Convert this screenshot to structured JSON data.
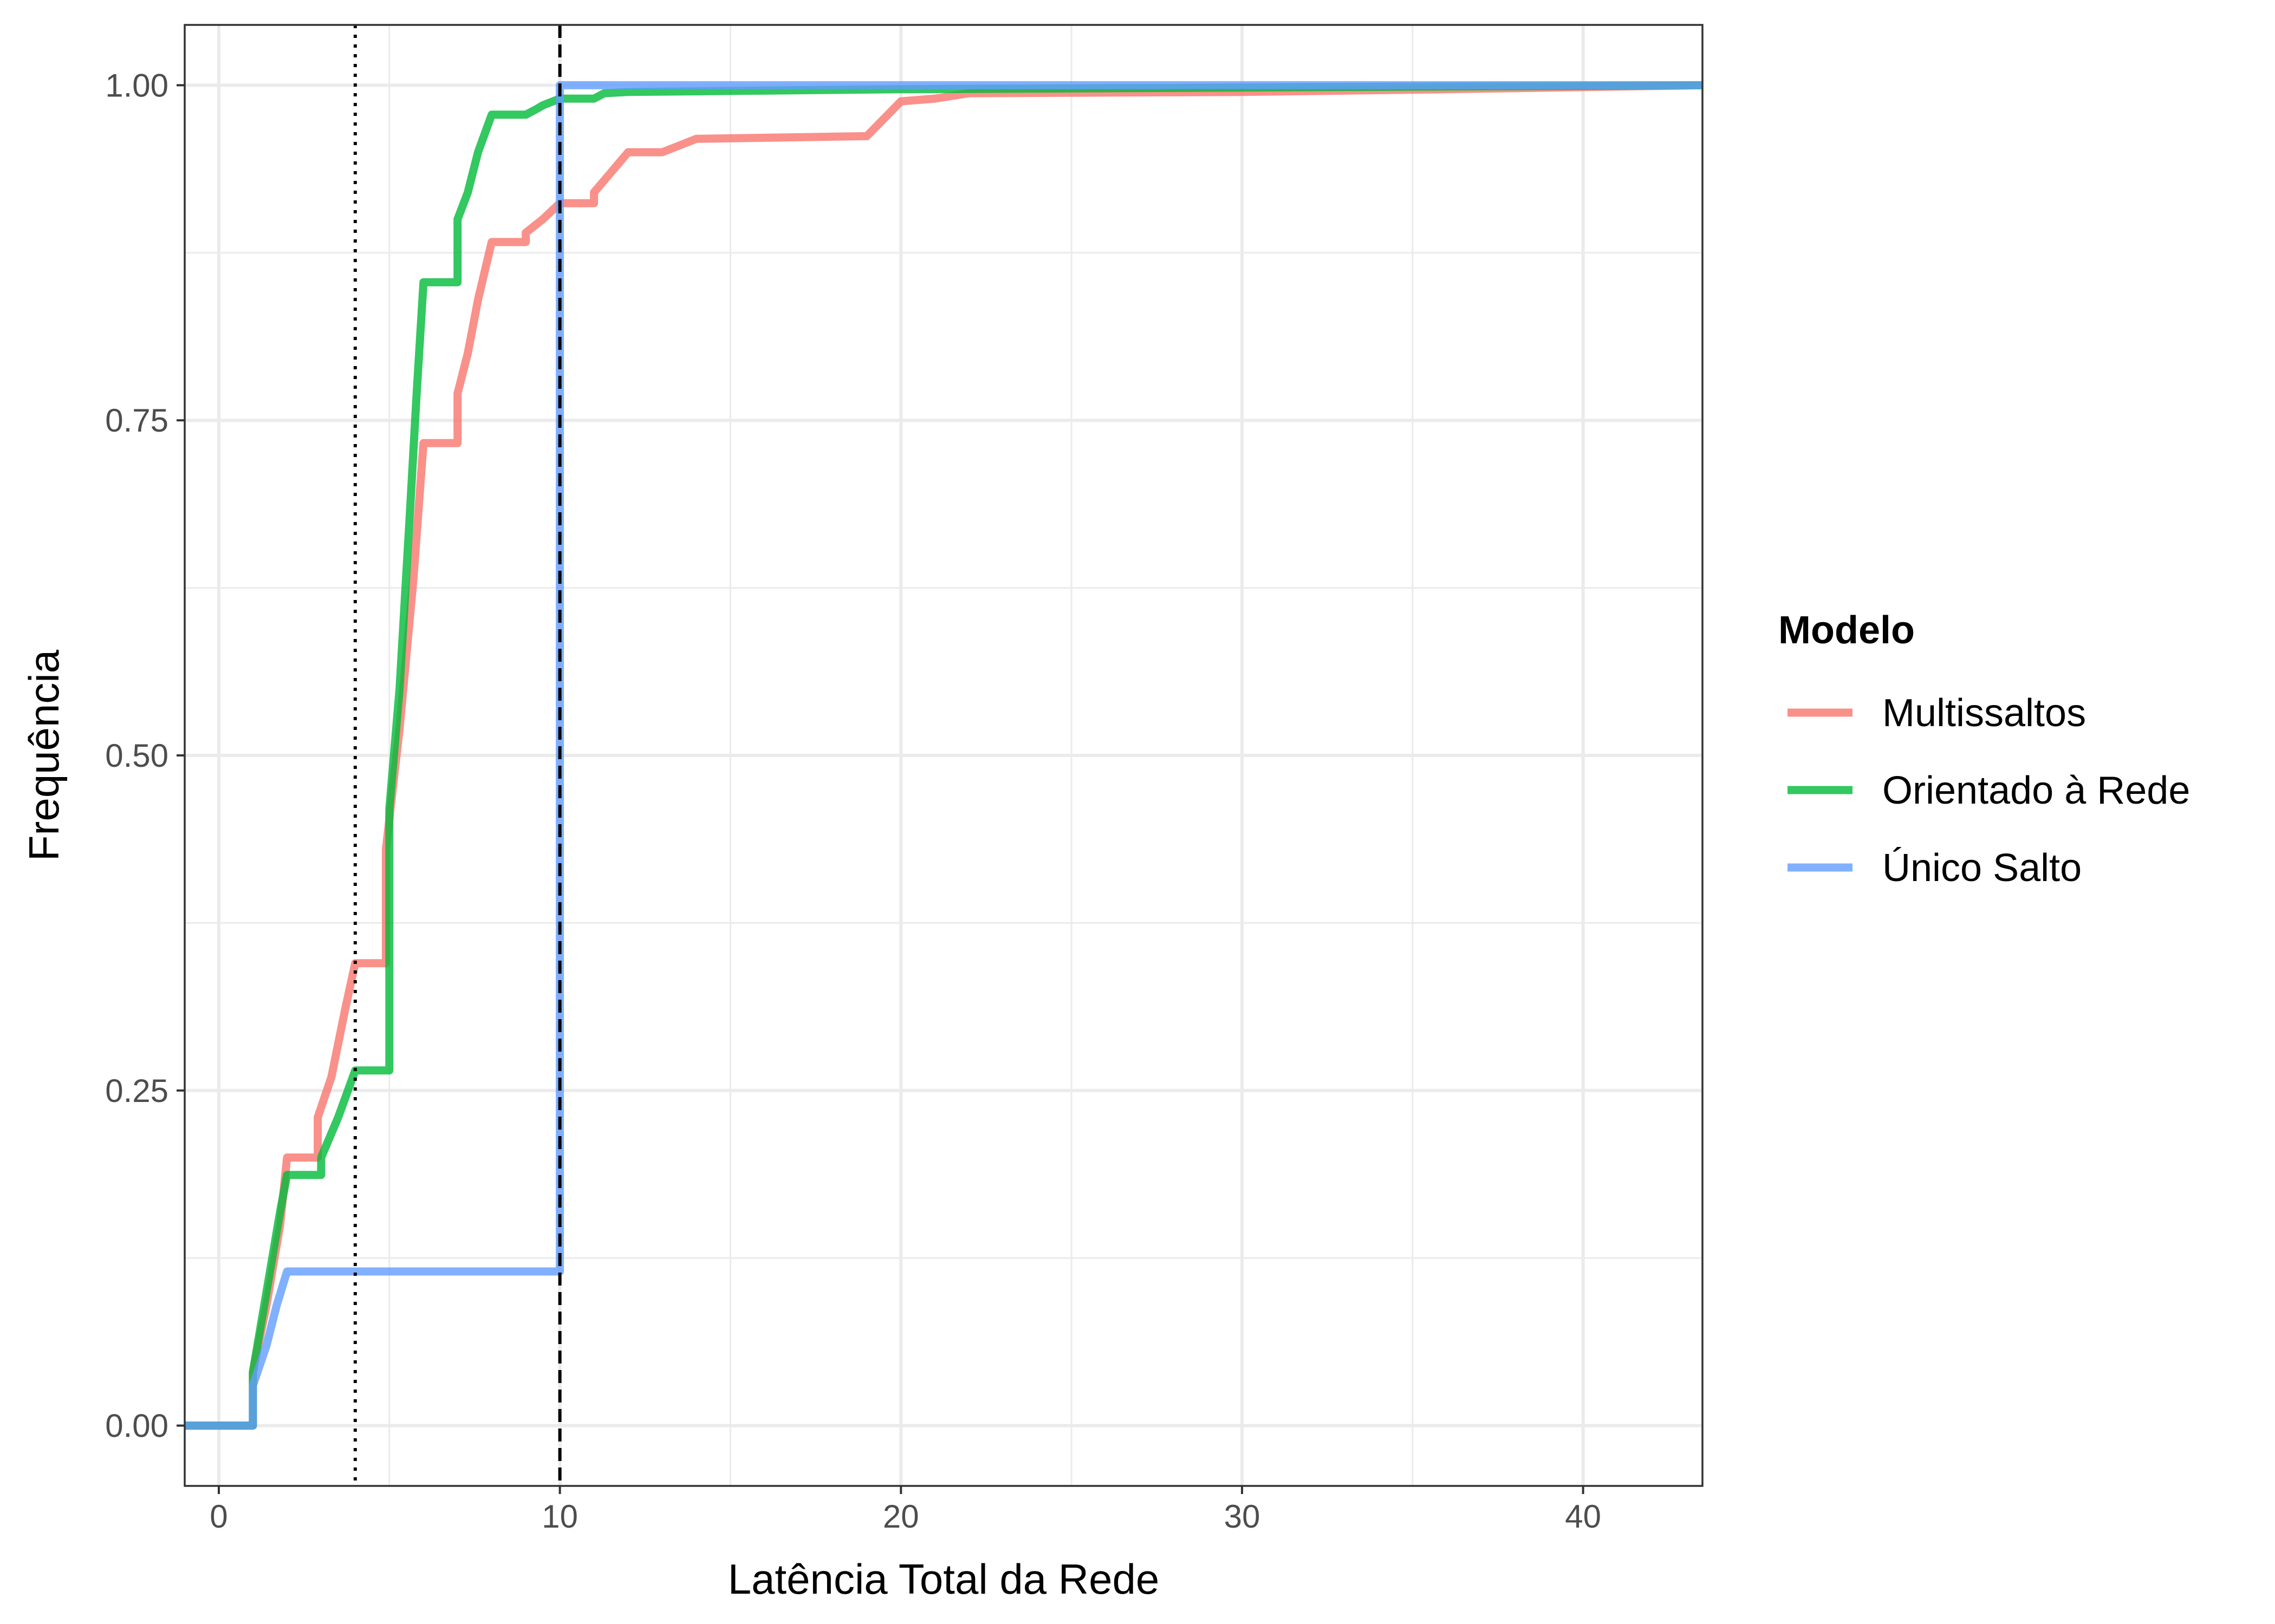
{
  "chart_data": {
    "type": "line",
    "step": true,
    "xlabel": "Latência Total da Rede",
    "ylabel": "Frequência",
    "xlim": [
      -1,
      43.5
    ],
    "ylim": [
      -0.045,
      1.045
    ],
    "x_ticks": [
      0,
      10,
      20,
      30,
      40
    ],
    "x_tick_labels": [
      "0",
      "10",
      "20",
      "30",
      "40"
    ],
    "y_ticks": [
      0,
      0.25,
      0.5,
      0.75,
      1
    ],
    "y_tick_labels": [
      "0.00",
      "0.25",
      "0.50",
      "0.75",
      "1.00"
    ],
    "x_minor_ticks": [
      5,
      15,
      25,
      35
    ],
    "y_minor_ticks": [
      0.125,
      0.375,
      0.625,
      0.875
    ],
    "grid": true,
    "legend": {
      "title": "Modelo",
      "position": "right"
    },
    "reference_lines": [
      {
        "x": 4,
        "style": "dotted",
        "color": "#000000"
      },
      {
        "x": 10,
        "style": "dashed",
        "color": "#000000"
      }
    ],
    "series": [
      {
        "name": "Multissaltos",
        "color": "#F8766D",
        "points": [
          [
            -1,
            0
          ],
          [
            1,
            0
          ],
          [
            1,
            0.04
          ],
          [
            1.4,
            0.09
          ],
          [
            1.8,
            0.15
          ],
          [
            2,
            0.2
          ],
          [
            2.9,
            0.2
          ],
          [
            2.9,
            0.23
          ],
          [
            3.3,
            0.26
          ],
          [
            3.7,
            0.31
          ],
          [
            4,
            0.345
          ],
          [
            4.9,
            0.345
          ],
          [
            4.9,
            0.43
          ],
          [
            5.3,
            0.52
          ],
          [
            5.7,
            0.63
          ],
          [
            6,
            0.733
          ],
          [
            7,
            0.733
          ],
          [
            7,
            0.77
          ],
          [
            7.3,
            0.8
          ],
          [
            7.6,
            0.84
          ],
          [
            8,
            0.883
          ],
          [
            9,
            0.883
          ],
          [
            9,
            0.89
          ],
          [
            9.5,
            0.9
          ],
          [
            10,
            0.912
          ],
          [
            11,
            0.912
          ],
          [
            11,
            0.92
          ],
          [
            12,
            0.95
          ],
          [
            13,
            0.95
          ],
          [
            13.5,
            0.955
          ],
          [
            14,
            0.96
          ],
          [
            19,
            0.962
          ],
          [
            19.5,
            0.975
          ],
          [
            20,
            0.988
          ],
          [
            21,
            0.99
          ],
          [
            22,
            0.994
          ],
          [
            30,
            0.995
          ],
          [
            36,
            0.997
          ],
          [
            43.5,
            1
          ]
        ]
      },
      {
        "name": "Orientado à Rede",
        "color": "#00BA38",
        "points": [
          [
            -1,
            0
          ],
          [
            1,
            0
          ],
          [
            1,
            0.04
          ],
          [
            1.4,
            0.1
          ],
          [
            1.8,
            0.16
          ],
          [
            2,
            0.187
          ],
          [
            3,
            0.187
          ],
          [
            3,
            0.2
          ],
          [
            3.5,
            0.23
          ],
          [
            4,
            0.265
          ],
          [
            5,
            0.265
          ],
          [
            5,
            0.46
          ],
          [
            5.3,
            0.55
          ],
          [
            5.6,
            0.68
          ],
          [
            5.8,
            0.77
          ],
          [
            6,
            0.853
          ],
          [
            7,
            0.853
          ],
          [
            7,
            0.9
          ],
          [
            7.3,
            0.92
          ],
          [
            7.6,
            0.95
          ],
          [
            8,
            0.978
          ],
          [
            9,
            0.978
          ],
          [
            9.3,
            0.982
          ],
          [
            9.5,
            0.985
          ],
          [
            10,
            0.99
          ],
          [
            11,
            0.99
          ],
          [
            11.3,
            0.994
          ],
          [
            12,
            0.995
          ],
          [
            20,
            0.997
          ],
          [
            43.5,
            1
          ]
        ]
      },
      {
        "name": "Único Salto",
        "color": "#619CFF",
        "points": [
          [
            -1,
            0
          ],
          [
            1,
            0
          ],
          [
            1,
            0.03
          ],
          [
            1.4,
            0.06
          ],
          [
            1.7,
            0.09
          ],
          [
            2,
            0.115
          ],
          [
            10,
            0.115
          ],
          [
            10,
            1
          ],
          [
            43.5,
            1
          ]
        ]
      }
    ]
  }
}
